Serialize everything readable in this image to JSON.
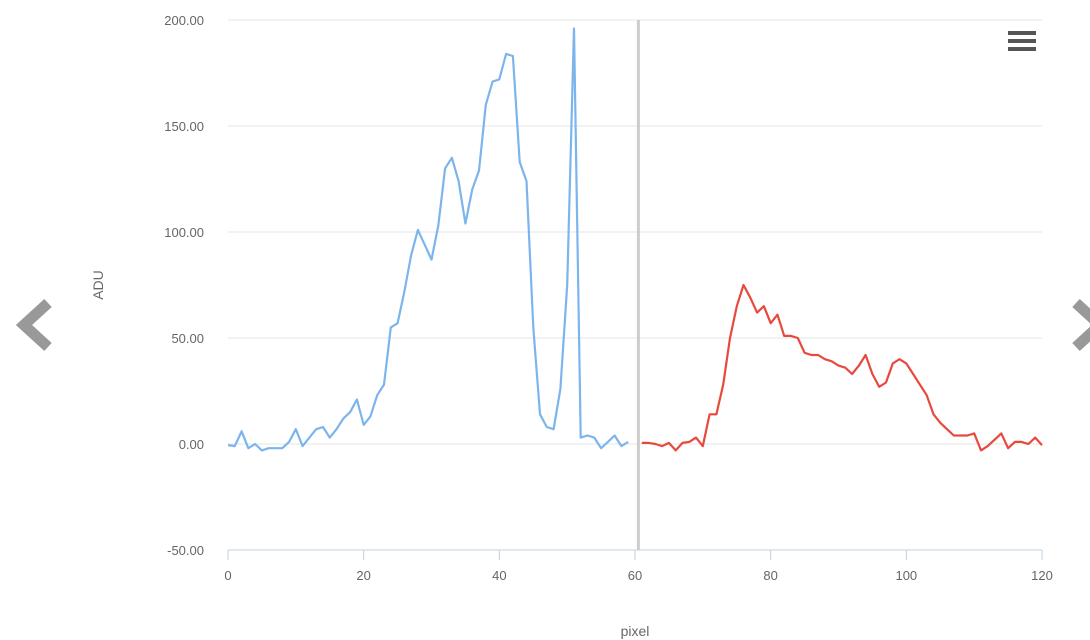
{
  "chart_data": {
    "type": "line",
    "xlabel": "pixel",
    "ylabel": "ADU",
    "xlim": [
      0,
      120
    ],
    "ylim": [
      -50,
      200
    ],
    "x_ticks": [
      0,
      20,
      40,
      60,
      80,
      100,
      120
    ],
    "y_ticks": [
      -50,
      0,
      50,
      100,
      150,
      200
    ],
    "x_tick_labels": [
      "0",
      "20",
      "40",
      "60",
      "80",
      "100",
      "120"
    ],
    "y_tick_labels": [
      "-50.00",
      "0.00",
      "50.00",
      "100.00",
      "150.00",
      "200.00"
    ],
    "grid": "horizontal",
    "crosshair_x": 60.5,
    "series": [
      {
        "color": "#7cb5ec",
        "x": [
          0,
          1,
          2,
          3,
          4,
          5,
          6,
          7,
          8,
          9,
          10,
          11,
          12,
          13,
          14,
          15,
          16,
          17,
          18,
          19,
          20,
          21,
          22,
          23,
          24,
          25,
          26,
          27,
          28,
          29,
          30,
          31,
          32,
          33,
          34,
          35,
          36,
          37,
          38,
          39,
          40,
          41,
          42,
          43,
          44,
          45,
          46,
          47,
          48,
          49,
          50,
          51,
          52,
          53,
          54,
          55,
          56,
          57,
          58,
          59,
          60
        ],
        "values": [
          -0.5,
          -1,
          6,
          -2,
          0,
          -3,
          -2,
          -2,
          -2,
          1,
          7,
          -1,
          3,
          7,
          8,
          3,
          7,
          12,
          15,
          21,
          9,
          13,
          23,
          28,
          55,
          57,
          72,
          89,
          101,
          94,
          87,
          103,
          130,
          135,
          124,
          104,
          120,
          129,
          160,
          171,
          172,
          184,
          183,
          133,
          124,
          55,
          14,
          8,
          7,
          26,
          75,
          196,
          3,
          4,
          3,
          -2,
          1,
          4,
          -1,
          1,
          null
        ]
      },
      {
        "color": "#e8493d",
        "x": [
          61,
          62,
          63,
          64,
          65,
          66,
          67,
          68,
          69,
          70,
          71,
          72,
          73,
          74,
          75,
          76,
          77,
          78,
          79,
          80,
          81,
          82,
          83,
          84,
          85,
          86,
          87,
          88,
          89,
          90,
          91,
          92,
          93,
          94,
          95,
          96,
          97,
          98,
          99,
          100,
          101,
          102,
          103,
          104,
          105,
          106,
          107,
          108,
          109,
          110,
          111,
          112,
          113,
          114,
          115,
          116,
          117,
          118,
          119,
          120
        ],
        "values": [
          0.5,
          0.5,
          0,
          -1,
          0.5,
          -3,
          0.5,
          1,
          3,
          -1,
          14,
          14,
          28,
          50,
          65,
          75,
          69,
          62,
          65,
          57,
          61,
          51,
          51,
          50,
          43,
          42,
          42,
          40,
          39,
          37,
          36,
          33,
          37,
          42,
          33,
          27,
          29,
          38,
          40,
          38,
          33,
          28,
          23,
          14,
          10,
          7,
          4,
          4,
          4,
          5,
          -3,
          -1,
          2,
          5,
          -2,
          1,
          1,
          0,
          3,
          -0.5
        ]
      }
    ]
  },
  "nav": {
    "prev_glyph": "‹",
    "next_glyph": "›"
  },
  "menu": {
    "icon": "hamburger-menu-icon"
  }
}
